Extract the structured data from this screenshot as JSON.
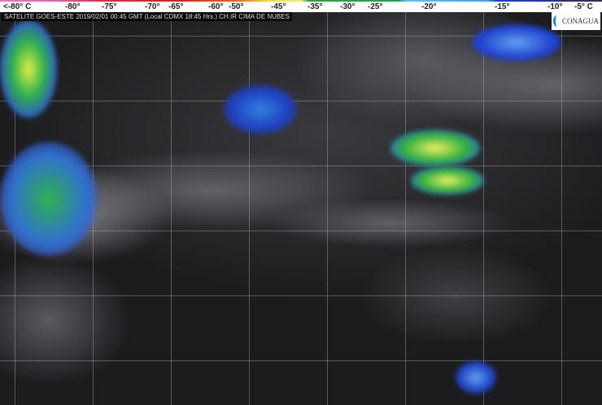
{
  "scale": {
    "ticks": [
      "<-80° C",
      "-80°",
      "-75°",
      "-70°",
      "-65°",
      "-60°",
      "-50°",
      "-45°",
      "-35°",
      "-30°",
      "-25°",
      "-20°",
      "-15°",
      "-10°",
      "-5° C"
    ],
    "colors": [
      "#f070c0",
      "#e03040",
      "#f06020",
      "#f0f070",
      "#20a050",
      "#60c0f0",
      "#2040d0",
      "#303050"
    ]
  },
  "caption": "SATELITE GOES-ESTE 2019/02/01 00:45 GMT (Local CDMX 18:45 Hrs.) CH.IR CIMA DE NUBES",
  "logo": "CONAGUA"
}
